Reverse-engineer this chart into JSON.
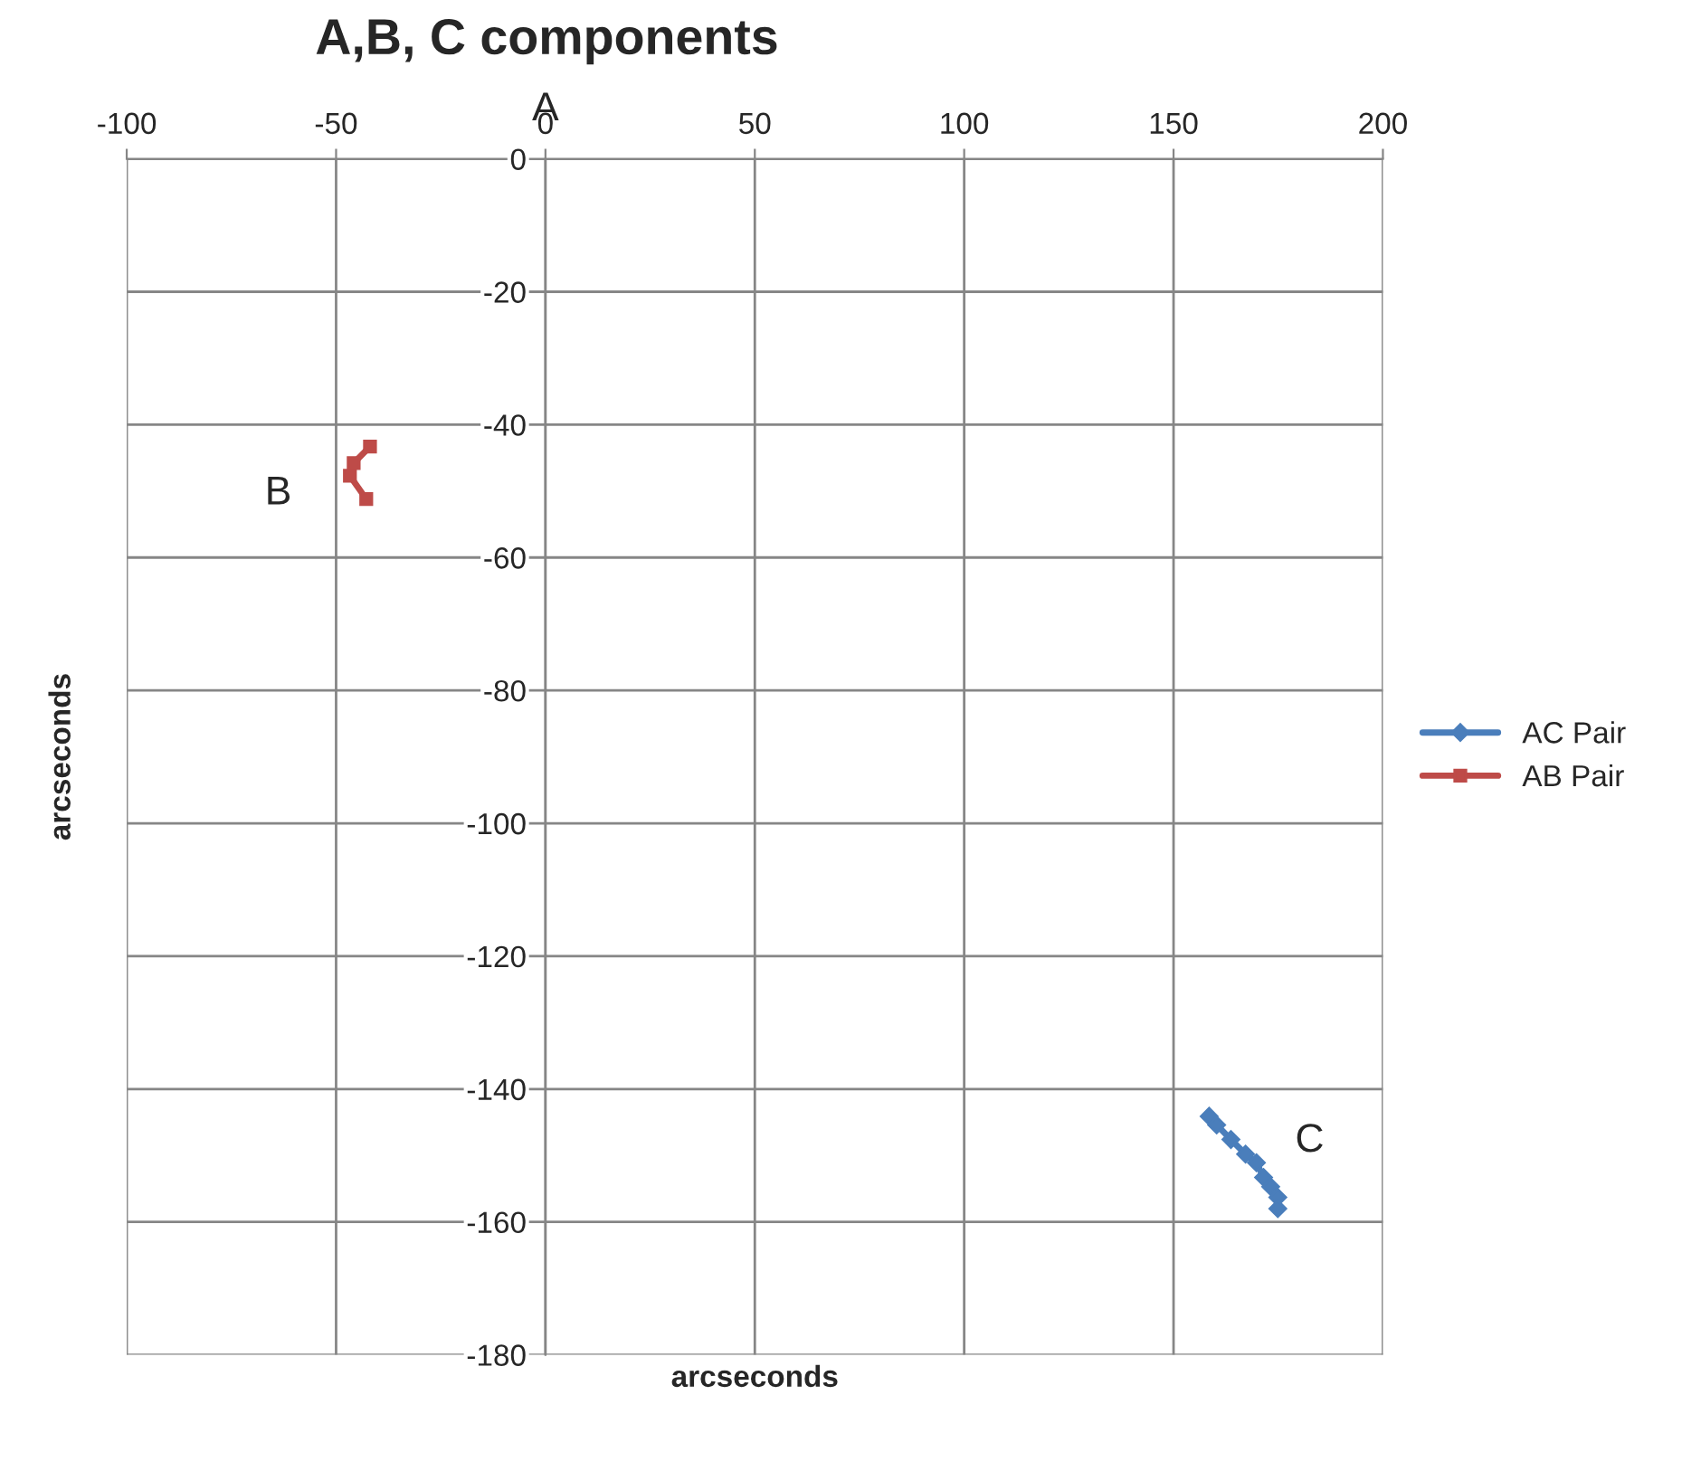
{
  "chart_data": {
    "type": "line",
    "title": "A,B, C components",
    "xlabel": "arcseconds",
    "ylabel": "arcseconds",
    "xlim": [
      -100,
      200
    ],
    "xticks": [
      -100,
      -50,
      0,
      50,
      100,
      150,
      200
    ],
    "ylim": [
      -180,
      0
    ],
    "yticks": [
      -180,
      -160,
      -140,
      -120,
      -100,
      -80,
      -60,
      -40,
      -20,
      0
    ],
    "grid": true,
    "legend": "right",
    "line_style": "solid",
    "series": [
      {
        "name": "AC Pair",
        "color": "#4a7ebb",
        "marker": "diamond",
        "x": [
          158.5,
          160.3,
          163.7,
          167.2,
          169.8,
          171.5,
          173.2,
          174.9,
          174.9
        ],
        "values": [
          -144.1,
          -145.4,
          -147.6,
          -149.8,
          -151.1,
          -153.3,
          -154.7,
          -156.3,
          -158.0
        ]
      },
      {
        "name": "AB Pair",
        "color": "#be4b48",
        "marker": "square",
        "x": [
          -41.9,
          -45.8,
          -46.7,
          -42.8
        ],
        "values": [
          -43.3,
          -45.8,
          -47.7,
          -51.2
        ]
      }
    ],
    "annotations": [
      "A",
      "B",
      "C"
    ]
  }
}
